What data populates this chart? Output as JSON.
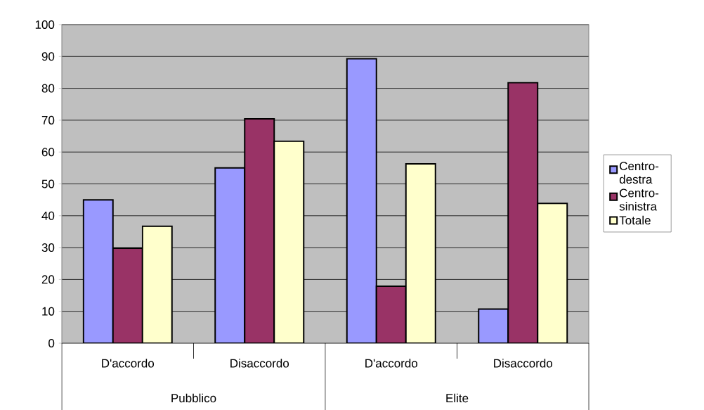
{
  "chart_data": {
    "type": "bar",
    "categories": [
      "D'accordo",
      "Disaccordo",
      "D'accordo",
      "Disaccordo"
    ],
    "series": [
      {
        "name": "Centro-destra",
        "color": "#9999ff",
        "values": [
          45,
          55,
          89.3,
          10.7
        ]
      },
      {
        "name": "Centro-sinistra",
        "color": "#993366",
        "values": [
          29.8,
          70.4,
          17.9,
          81.8
        ]
      },
      {
        "name": "Totale",
        "color": "#ffffcc",
        "values": [
          36.7,
          63.4,
          56.3,
          43.9
        ]
      }
    ],
    "annotations": [
      "Pubblico",
      "Elite"
    ],
    "ylim": [
      0,
      100
    ],
    "yticks": [
      0,
      10,
      20,
      30,
      40,
      50,
      60,
      70,
      80,
      90,
      100
    ],
    "grid": "y",
    "legend": "right"
  }
}
